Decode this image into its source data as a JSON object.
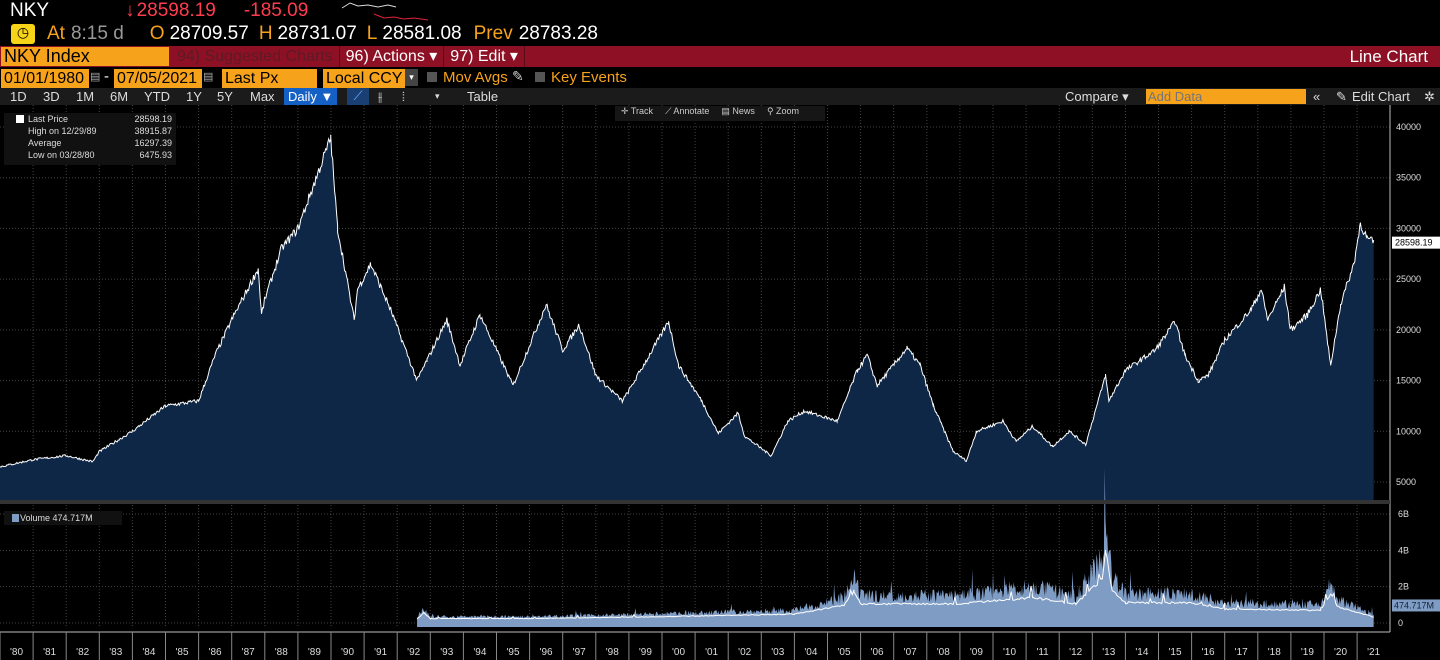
{
  "quote": {
    "ticker": "NKY",
    "arrow": "↓",
    "last": "28598.19",
    "change": "-185.09",
    "at_label": "At",
    "time": "8:15 d",
    "open_label": "O",
    "open": "28709.57",
    "high_label": "H",
    "high": "28731.07",
    "low_label": "L",
    "low": "28581.08",
    "prev_label": "Prev",
    "prev": "28783.28"
  },
  "menubar": {
    "security": "NKY Index",
    "suggested": "94) Suggested Charts",
    "actions": "96) Actions ▾",
    "edit": "97) Edit ▾",
    "chart_type": "Line Chart"
  },
  "controls": {
    "start_date": "01/01/1980",
    "dash": "-",
    "end_date": "07/05/2021",
    "field": "Last Px",
    "currency": "Local CCY",
    "mov_avgs": "Mov Avgs",
    "key_events": "Key Events"
  },
  "toolbar": {
    "periods": [
      "1D",
      "3D",
      "1M",
      "6M",
      "YTD",
      "1Y",
      "5Y",
      "Max"
    ],
    "frequency": "Daily ▼",
    "table": "Table",
    "compare": "Compare ▾",
    "add_data_placeholder": "Add Data",
    "edit_chart": "Edit Chart"
  },
  "chart_tools": [
    "Track",
    "Annotate",
    "News",
    "Zoom"
  ],
  "legend": {
    "rows": [
      {
        "label": "Last Price",
        "value": "28598.19"
      },
      {
        "label": "High on 12/29/89",
        "value": "38915.87"
      },
      {
        "label": "Average",
        "value": "16297.39"
      },
      {
        "label": "Low on 03/28/80",
        "value": "6475.93"
      }
    ],
    "volume_label": "Volume",
    "volume_value": "474.717M"
  },
  "colors": {
    "accent": "#f7a21b",
    "bar": "#8e1024",
    "area": "#0e2747",
    "volume": "#7f9cc4"
  },
  "chart_data": {
    "type": "area",
    "x_ticks": [
      "'80",
      "'81",
      "'82",
      "'83",
      "'84",
      "'85",
      "'86",
      "'87",
      "'88",
      "'89",
      "'90",
      "'91",
      "'92",
      "'93",
      "'94",
      "'95",
      "'96",
      "'97",
      "'98",
      "'99",
      "'00",
      "'01",
      "'02",
      "'03",
      "'04",
      "'05",
      "'06",
      "'07",
      "'08",
      "'09",
      "'10",
      "'11",
      "'12",
      "'13",
      "'14",
      "'15",
      "'16",
      "'17",
      "'18",
      "'19",
      "'20",
      "'21"
    ],
    "price": {
      "ylim": [
        3000,
        42000
      ],
      "y_ticks": [
        "5000",
        "10000",
        "15000",
        "20000",
        "25000",
        "30000",
        "35000",
        "40000"
      ],
      "last_label": "28598.19",
      "points": [
        [
          1980,
          6500
        ],
        [
          1981,
          7200
        ],
        [
          1982,
          7600
        ],
        [
          1982.8,
          7000
        ],
        [
          1983,
          8000
        ],
        [
          1984,
          10000
        ],
        [
          1985,
          12500
        ],
        [
          1986,
          13000
        ],
        [
          1986.5,
          17500
        ],
        [
          1987,
          21000
        ],
        [
          1987.8,
          26000
        ],
        [
          1987.9,
          21500
        ],
        [
          1988,
          23000
        ],
        [
          1988.5,
          28000
        ],
        [
          1989,
          30000
        ],
        [
          1989.99,
          38916
        ],
        [
          1990.2,
          30000
        ],
        [
          1990.7,
          21000
        ],
        [
          1990.8,
          24000
        ],
        [
          1991.2,
          26500
        ],
        [
          1991.8,
          22000
        ],
        [
          1992.6,
          15000
        ],
        [
          1992.9,
          17000
        ],
        [
          1993.5,
          21000
        ],
        [
          1993.9,
          16500
        ],
        [
          1994.5,
          21500
        ],
        [
          1995.5,
          14500
        ],
        [
          1996.5,
          22500
        ],
        [
          1997,
          18000
        ],
        [
          1997.5,
          20500
        ],
        [
          1998,
          15500
        ],
        [
          1998.8,
          13000
        ],
        [
          1999,
          14000
        ],
        [
          2000.2,
          20800
        ],
        [
          2000.5,
          16500
        ],
        [
          2001.2,
          13000
        ],
        [
          2001.7,
          9800
        ],
        [
          2002.3,
          11800
        ],
        [
          2002.5,
          9500
        ],
        [
          2003.3,
          7600
        ],
        [
          2003.8,
          11000
        ],
        [
          2004.3,
          12000
        ],
        [
          2005.3,
          11000
        ],
        [
          2005.9,
          16000
        ],
        [
          2006.2,
          17500
        ],
        [
          2006.5,
          14500
        ],
        [
          2007.4,
          18200
        ],
        [
          2007.8,
          16500
        ],
        [
          2008.2,
          12500
        ],
        [
          2008.8,
          8000
        ],
        [
          2009.2,
          7100
        ],
        [
          2009.5,
          10000
        ],
        [
          2010.3,
          11000
        ],
        [
          2010.7,
          9000
        ],
        [
          2011.2,
          10500
        ],
        [
          2011.8,
          8500
        ],
        [
          2012.3,
          10000
        ],
        [
          2012.8,
          8700
        ],
        [
          2013.4,
          15500
        ],
        [
          2013.5,
          13000
        ],
        [
          2014,
          16000
        ],
        [
          2014.9,
          18000
        ],
        [
          2015.5,
          20800
        ],
        [
          2015.8,
          17500
        ],
        [
          2016.2,
          15000
        ],
        [
          2016.5,
          15500
        ],
        [
          2017,
          19000
        ],
        [
          2017.8,
          22000
        ],
        [
          2018.1,
          24000
        ],
        [
          2018.3,
          21000
        ],
        [
          2018.8,
          24200
        ],
        [
          2018.99,
          20000
        ],
        [
          2019.5,
          21500
        ],
        [
          2019.9,
          24000
        ],
        [
          2020.2,
          16500
        ],
        [
          2020.5,
          22500
        ],
        [
          2020.9,
          26500
        ],
        [
          2021.1,
          30500
        ],
        [
          2021.3,
          29000
        ],
        [
          2021.5,
          28598
        ]
      ]
    },
    "volume": {
      "unit": "B",
      "ylim": [
        0,
        6.5
      ],
      "y_ticks": [
        "0",
        "2B",
        "4B",
        "6B"
      ],
      "last_label": "474.717M",
      "points": [
        [
          1992.6,
          0.3
        ],
        [
          1992.8,
          0.8
        ],
        [
          1993,
          0.35
        ],
        [
          1996,
          0.35
        ],
        [
          2000,
          0.5
        ],
        [
          2004,
          0.7
        ],
        [
          2005.5,
          1.4
        ],
        [
          2005.8,
          2.5
        ],
        [
          2006,
          1.5
        ],
        [
          2009,
          1.5
        ],
        [
          2011.2,
          2.0
        ],
        [
          2012.5,
          1.5
        ],
        [
          2013.3,
          3.5
        ],
        [
          2013.4,
          5.8
        ],
        [
          2013.6,
          2.5
        ],
        [
          2014,
          1.6
        ],
        [
          2016,
          1.6
        ],
        [
          2017,
          1.1
        ],
        [
          2019.9,
          1.0
        ],
        [
          2020.2,
          2.3
        ],
        [
          2020.4,
          1.3
        ],
        [
          2021.5,
          0.47
        ]
      ]
    }
  }
}
